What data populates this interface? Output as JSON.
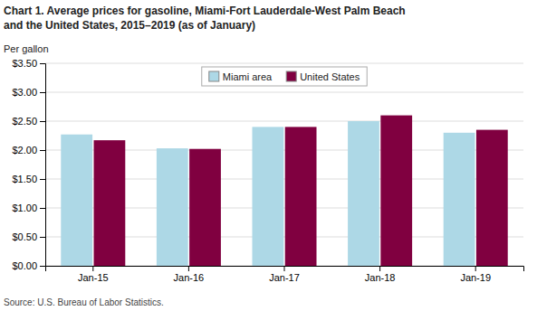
{
  "chart_data": {
    "type": "bar",
    "title": [
      "Chart 1. Average prices for gasoline, Miami-Fort Lauderdale-West Palm Beach",
      "and the United States, 2015–2019 (as of January)"
    ],
    "ylabel": "Per gallon",
    "source": "Source: U.S. Bureau of Labor Statistics.",
    "categories": [
      "Jan-15",
      "Jan-16",
      "Jan-17",
      "Jan-18",
      "Jan-19"
    ],
    "series": [
      {
        "name": "Miami area",
        "color": "#ADD8E6",
        "values": [
          2.27,
          2.03,
          2.4,
          2.5,
          2.3
        ]
      },
      {
        "name": "United States",
        "color": "#800040",
        "values": [
          2.17,
          2.02,
          2.4,
          2.6,
          2.35
        ]
      }
    ],
    "ylim": [
      0.0,
      3.5
    ],
    "yticks": [
      {
        "value": 0.0,
        "label": "$0.00"
      },
      {
        "value": 0.5,
        "label": "$0.50"
      },
      {
        "value": 1.0,
        "label": "$1.00"
      },
      {
        "value": 1.5,
        "label": "$1.50"
      },
      {
        "value": 2.0,
        "label": "$2.00"
      },
      {
        "value": 2.5,
        "label": "$2.50"
      },
      {
        "value": 3.0,
        "label": "$3.00"
      },
      {
        "value": 3.5,
        "label": "$3.50"
      }
    ],
    "grid": true,
    "legend": "top"
  }
}
